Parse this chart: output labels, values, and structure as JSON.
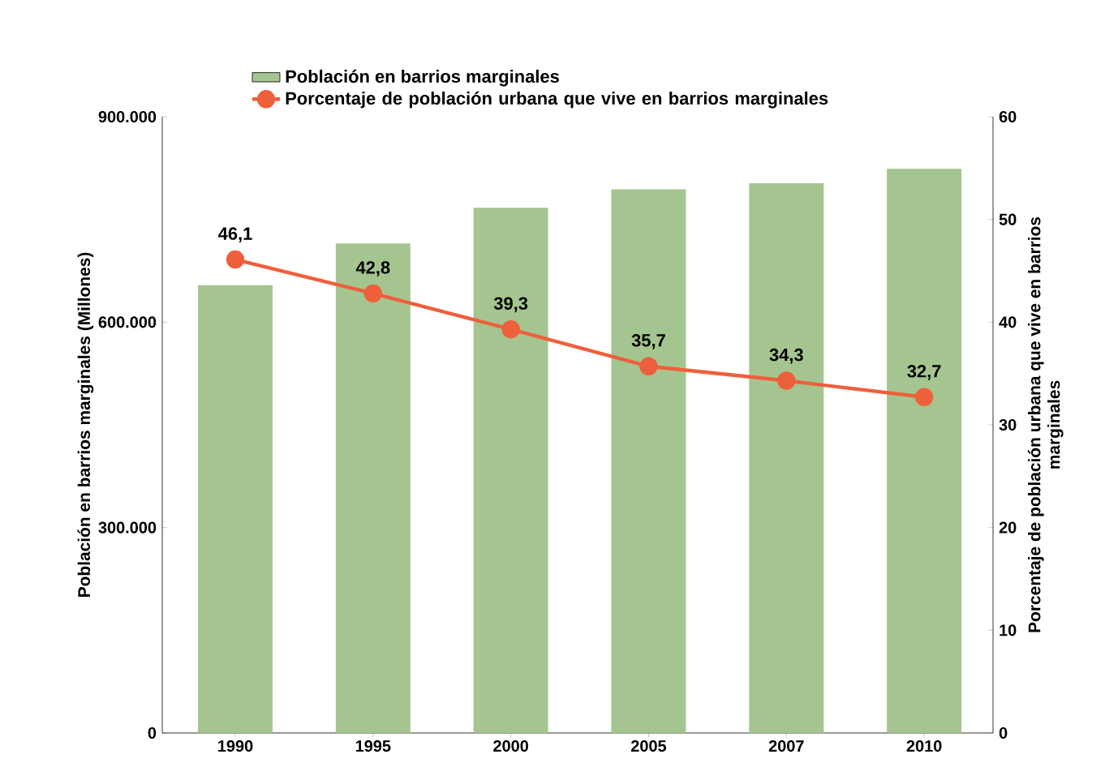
{
  "chart_data": {
    "type": "bar",
    "categories": [
      "1990",
      "1995",
      "2000",
      "2005",
      "2007",
      "2010"
    ],
    "series": [
      {
        "name": "Población en barrios marginales",
        "color": "#a5c590",
        "values": [
          654000,
          715000,
          767000,
          794000,
          803000,
          824000
        ]
      },
      {
        "name": "Porcentaje de población urbana que vive en barrios marginales",
        "type": "line",
        "axis": "y2",
        "color": "#ee5f3b",
        "marker": "circle",
        "values": [
          46.1,
          42.8,
          39.3,
          35.7,
          34.3,
          32.7
        ],
        "value_labels": [
          "46,1",
          "42,8",
          "39,3",
          "35,7",
          "34,3",
          "32,7"
        ]
      }
    ],
    "ylabel": "Población en barrios marginales (Millones)",
    "y2label": "Porcentaje de población urbana que vive en barrios marginales",
    "ylim": [
      0,
      900000
    ],
    "yticks": [
      {
        "value": 0,
        "label": "0"
      },
      {
        "value": 300000,
        "label": "300.000"
      },
      {
        "value": 600000,
        "label": "600.000"
      },
      {
        "value": 900000,
        "label": "900.000"
      }
    ],
    "y2lim": [
      0,
      60
    ],
    "y2ticks": [
      0,
      10,
      20,
      30,
      40,
      50,
      60
    ],
    "legend": "top",
    "grid": false
  }
}
